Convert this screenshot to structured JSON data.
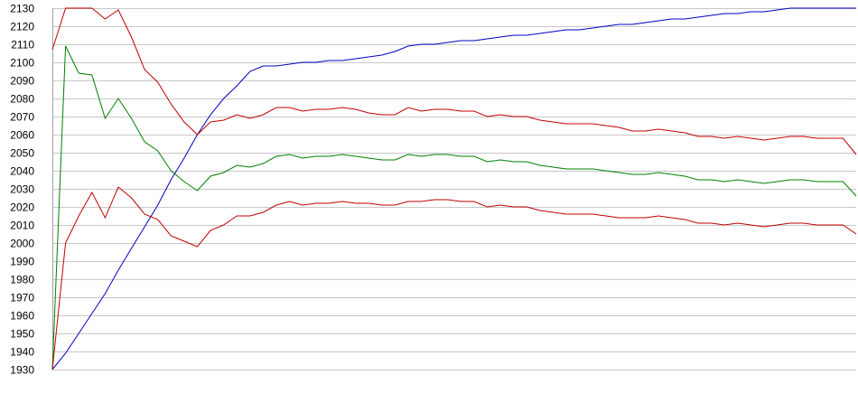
{
  "chart_data": {
    "type": "line",
    "title": "",
    "xlabel": "",
    "ylabel": "",
    "ylim": [
      1930,
      2130
    ],
    "yticks": [
      1930,
      1940,
      1950,
      1960,
      1970,
      1980,
      1990,
      2000,
      2010,
      2020,
      2030,
      2040,
      2050,
      2060,
      2070,
      2080,
      2090,
      2100,
      2110,
      2120,
      2130
    ],
    "grid": true,
    "legend": "none",
    "x": [
      0,
      1,
      2,
      3,
      4,
      5,
      6,
      7,
      8,
      9,
      10,
      11,
      12,
      13,
      14,
      15,
      16,
      17,
      18,
      19,
      20,
      21,
      22,
      23,
      24,
      25,
      26,
      27,
      28,
      29,
      30,
      31,
      32,
      33,
      34,
      35,
      36,
      37,
      38,
      39,
      40,
      41,
      42,
      43,
      44,
      45,
      46,
      47,
      48,
      49,
      50,
      51,
      52,
      53,
      54,
      55,
      56,
      57,
      58,
      59,
      60,
      61
    ],
    "series": [
      {
        "color": "#0000c0",
        "values": [
          1930,
          1939,
          1950,
          1961,
          1972,
          1985,
          1997,
          2009,
          2021,
          2035,
          2047,
          2060,
          2071,
          2080,
          2087,
          2095,
          2098,
          2098,
          2099,
          2100,
          2100,
          2101,
          2101,
          2102,
          2103,
          2104,
          2106,
          2109,
          2110,
          2110,
          2111,
          2112,
          2112,
          2113,
          2114,
          2115,
          2115,
          2116,
          2117,
          2118,
          2118,
          2119,
          2120,
          2121,
          2121,
          2122,
          2123,
          2124,
          2124,
          2125,
          2126,
          2127,
          2127,
          2128,
          2128,
          2129,
          2130,
          2130,
          2130,
          2130,
          2130,
          2130
        ]
      },
      {
        "color": "#c00000",
        "values": [
          2107,
          2130,
          2130,
          2130,
          2124,
          2129,
          2114,
          2096,
          2089,
          2077,
          2067,
          2060,
          2067,
          2068,
          2071,
          2069,
          2071,
          2075,
          2075,
          2073,
          2074,
          2074,
          2075,
          2074,
          2072,
          2071,
          2071,
          2075,
          2073,
          2074,
          2074,
          2073,
          2073,
          2070,
          2071,
          2070,
          2070,
          2068,
          2067,
          2066,
          2066,
          2066,
          2065,
          2064,
          2062,
          2062,
          2063,
          2062,
          2061,
          2059,
          2059,
          2058,
          2059,
          2058,
          2057,
          2058,
          2059,
          2059,
          2058,
          2058,
          2058,
          2049
        ]
      },
      {
        "color": "#008000",
        "values": [
          1930,
          2109,
          2094,
          2093,
          2069,
          2080,
          2069,
          2056,
          2051,
          2040,
          2034,
          2029,
          2037,
          2039,
          2043,
          2042,
          2044,
          2048,
          2049,
          2047,
          2048,
          2048,
          2049,
          2048,
          2047,
          2046,
          2046,
          2049,
          2048,
          2049,
          2049,
          2048,
          2048,
          2045,
          2046,
          2045,
          2045,
          2043,
          2042,
          2041,
          2041,
          2041,
          2040,
          2039,
          2038,
          2038,
          2039,
          2038,
          2037,
          2035,
          2035,
          2034,
          2035,
          2034,
          2033,
          2034,
          2035,
          2035,
          2034,
          2034,
          2034,
          2026
        ]
      },
      {
        "color": "#c00000",
        "values": [
          1930,
          2000,
          2015,
          2028,
          2014,
          2031,
          2025,
          2016,
          2013,
          2004,
          2001,
          1998,
          2007,
          2010,
          2015,
          2015,
          2017,
          2021,
          2023,
          2021,
          2022,
          2022,
          2023,
          2022,
          2022,
          2021,
          2021,
          2023,
          2023,
          2024,
          2024,
          2023,
          2023,
          2020,
          2021,
          2020,
          2020,
          2018,
          2017,
          2016,
          2016,
          2016,
          2015,
          2014,
          2014,
          2014,
          2015,
          2014,
          2013,
          2011,
          2011,
          2010,
          2011,
          2010,
          2009,
          2010,
          2011,
          2011,
          2010,
          2010,
          2010,
          2005
        ]
      }
    ]
  }
}
